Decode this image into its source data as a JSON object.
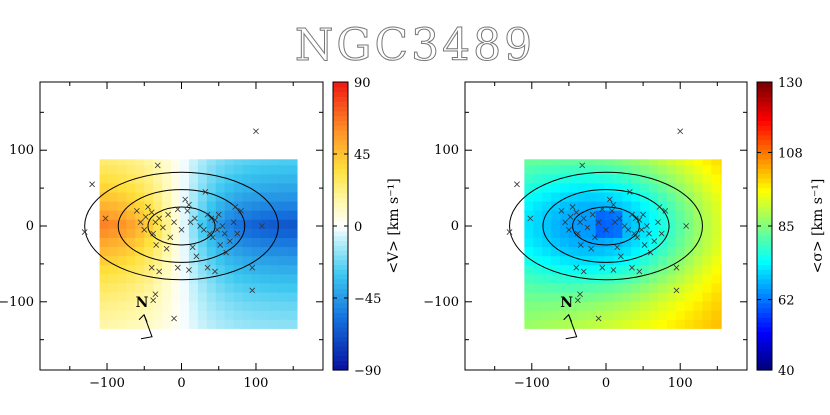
{
  "title": "NGC3489",
  "chart_data": [
    {
      "type": "heatmap",
      "name": "velocity-map",
      "colorbar_label": "<V> [km s⁻¹]",
      "colorbar_ticks": [
        -90,
        -45,
        0,
        45,
        90
      ],
      "colorbar_range": [
        -90,
        90
      ],
      "xlim": [
        -190,
        190
      ],
      "ylim": [
        -190,
        190
      ],
      "x_ticks": [
        -100,
        0,
        100
      ],
      "y_ticks": [
        -100,
        0,
        100
      ],
      "north_label": "N",
      "map_extent": {
        "x": [
          -110,
          155
        ],
        "y": [
          -135,
          88
        ]
      },
      "ellipses": [
        {
          "cx": 0,
          "cy": 0,
          "a": 130,
          "b": 71
        },
        {
          "cx": 0,
          "cy": 0,
          "a": 85,
          "b": 48
        },
        {
          "cx": 0,
          "cy": 0,
          "a": 45,
          "b": 25
        }
      ]
    },
    {
      "type": "heatmap",
      "name": "dispersion-map",
      "colorbar_label": "<σ> [km s⁻¹]",
      "colorbar_ticks": [
        40,
        62,
        85,
        108,
        130
      ],
      "colorbar_range": [
        40,
        130
      ],
      "xlim": [
        -190,
        190
      ],
      "ylim": [
        -190,
        190
      ],
      "x_ticks": [
        -100,
        0,
        100
      ],
      "y_ticks": [
        -100,
        0,
        100
      ],
      "north_label": "N",
      "map_extent": {
        "x": [
          -110,
          155
        ],
        "y": [
          -135,
          88
        ]
      },
      "ellipses": [
        {
          "cx": 0,
          "cy": 0,
          "a": 130,
          "b": 71
        },
        {
          "cx": 0,
          "cy": 0,
          "a": 85,
          "b": 48
        },
        {
          "cx": 0,
          "cy": 0,
          "a": 45,
          "b": 25
        }
      ]
    }
  ],
  "sources": [
    [
      -130,
      -8
    ],
    [
      -120,
      55
    ],
    [
      -102,
      10
    ],
    [
      -60,
      20
    ],
    [
      -55,
      5
    ],
    [
      -50,
      -5
    ],
    [
      -48,
      12
    ],
    [
      -45,
      25
    ],
    [
      -40,
      18
    ],
    [
      -38,
      -10
    ],
    [
      -35,
      5
    ],
    [
      -34,
      -25
    ],
    [
      -30,
      10
    ],
    [
      -32,
      80
    ],
    [
      -25,
      -2
    ],
    [
      -20,
      -30
    ],
    [
      -18,
      15
    ],
    [
      -15,
      -15
    ],
    [
      -10,
      5
    ],
    [
      -5,
      22
    ],
    [
      0,
      -5
    ],
    [
      5,
      35
    ],
    [
      8,
      20
    ],
    [
      10,
      28
    ],
    [
      12,
      5
    ],
    [
      15,
      -28
    ],
    [
      18,
      10
    ],
    [
      20,
      -40
    ],
    [
      25,
      0
    ],
    [
      30,
      -5
    ],
    [
      32,
      45
    ],
    [
      35,
      15
    ],
    [
      38,
      -10
    ],
    [
      40,
      10
    ],
    [
      42,
      -15
    ],
    [
      45,
      8
    ],
    [
      48,
      -5
    ],
    [
      50,
      15
    ],
    [
      52,
      -25
    ],
    [
      55,
      0
    ],
    [
      58,
      -10
    ],
    [
      60,
      -35
    ],
    [
      65,
      -20
    ],
    [
      70,
      5
    ],
    [
      72,
      25
    ],
    [
      75,
      -10
    ],
    [
      80,
      20
    ],
    [
      95,
      -55
    ],
    [
      100,
      125
    ],
    [
      108,
      0
    ],
    [
      -40,
      -55
    ],
    [
      -30,
      -60
    ],
    [
      -5,
      -55
    ],
    [
      10,
      -58
    ],
    [
      35,
      -55
    ],
    [
      45,
      -60
    ],
    [
      95,
      -85
    ],
    [
      -35,
      -90
    ],
    [
      -38,
      -98
    ],
    [
      -10,
      -122
    ]
  ]
}
